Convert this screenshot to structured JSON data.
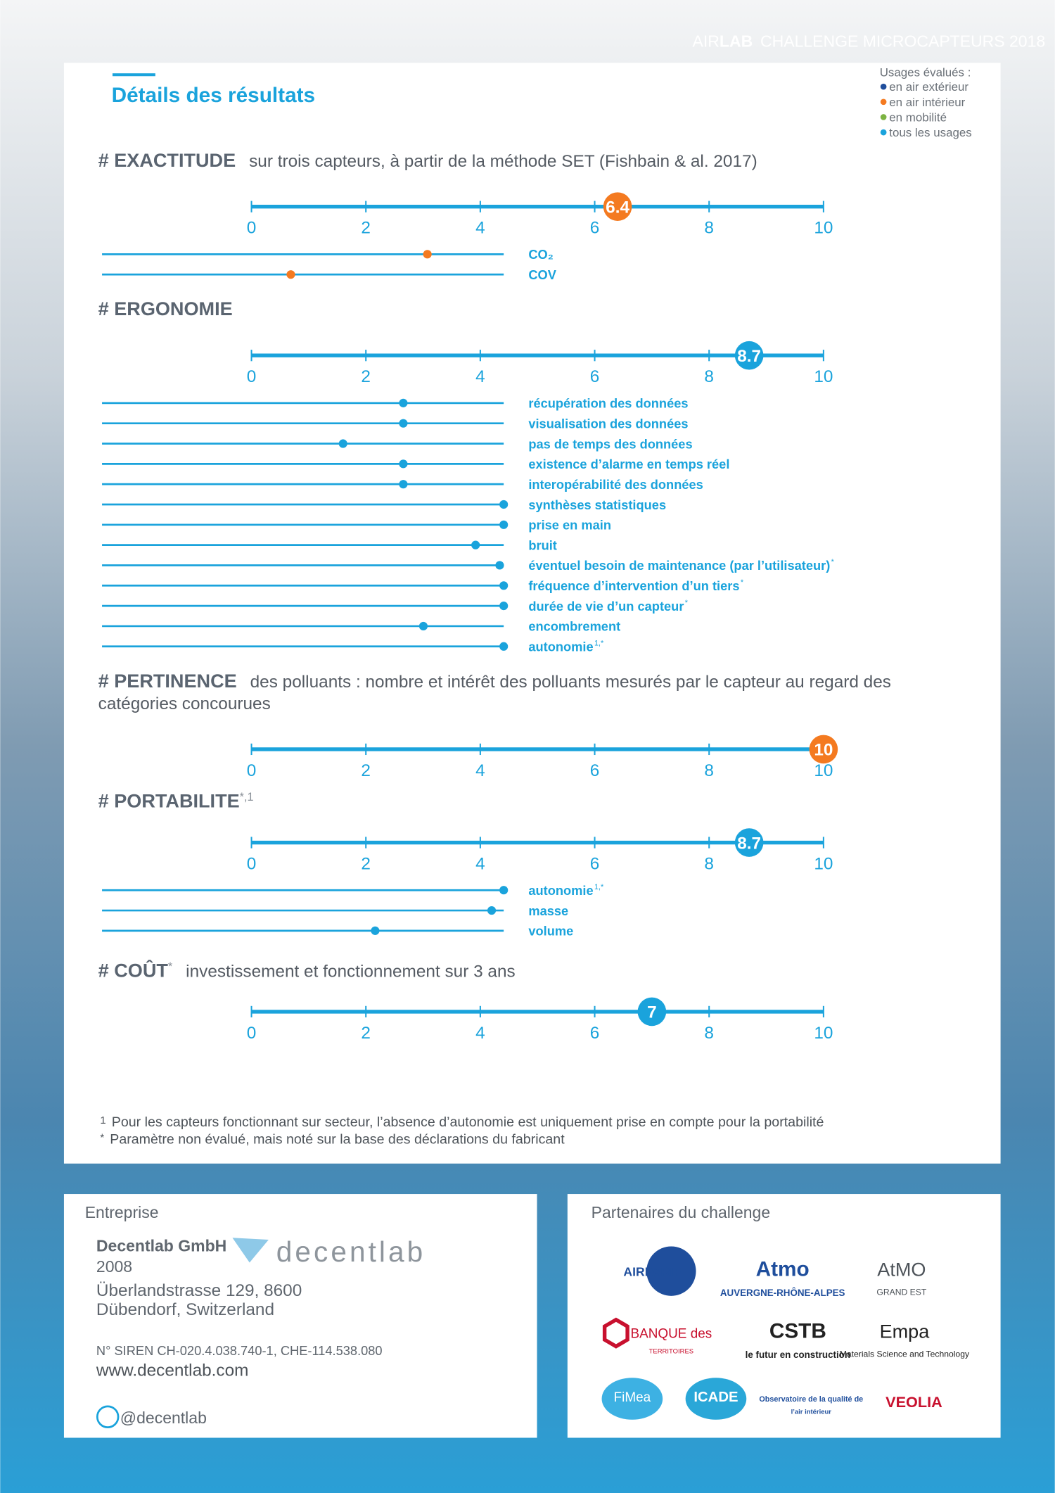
{
  "header": {
    "brand_air": "AIR",
    "brand_lab": "LAB",
    "title": "CHALLENGE MICROCAPTEURS 2018"
  },
  "page_title": "Détails des résultats",
  "legend": {
    "title": "Usages évalués :",
    "items": [
      {
        "label": "en air extérieur",
        "color": "#1f4e9c"
      },
      {
        "label": "en air intérieur",
        "color": "#f47a20"
      },
      {
        "label": "en mobilité",
        "color": "#7cb342"
      },
      {
        "label": "tous les usages",
        "color": "#1aa3dc"
      }
    ]
  },
  "sections": [
    {
      "heading": "# EXACTITUDE",
      "description": "sur trois capteurs, à partir de la méthode SET (Fishbain & al. 2017)",
      "score": 6.4,
      "color": "#f47a20",
      "xlim": [
        0,
        10
      ],
      "xticks": [
        0,
        2,
        4,
        6,
        8,
        10
      ],
      "criteria": [
        {
          "label": "CO₂",
          "value": 8.1
        },
        {
          "label": "COV",
          "value": 4.7
        }
      ]
    },
    {
      "heading": "# ERGONOMIE",
      "score": 8.7,
      "color": "#1aa3dc",
      "xlim": [
        0,
        10
      ],
      "xticks": [
        0,
        2,
        4,
        6,
        8,
        10
      ],
      "criteria": [
        {
          "label": "récupération des données",
          "value": 7.5
        },
        {
          "label": "visualisation des données",
          "value": 7.5
        },
        {
          "label": "pas de temps des données",
          "value": 6.0
        },
        {
          "label": "existence d’alarme en temps réel",
          "value": 7.5
        },
        {
          "label": "interopérabilité des données",
          "value": 7.5
        },
        {
          "label": "synthèses statistiques",
          "value": 10
        },
        {
          "label": "prise en main",
          "value": 10
        },
        {
          "label": "bruit",
          "value": 9.3
        },
        {
          "label": "éventuel besoin de maintenance (par l’utilisateur)",
          "note": "*",
          "value": 9.9
        },
        {
          "label": "fréquence d’intervention d’un tiers",
          "note": "*",
          "value": 10
        },
        {
          "label": "durée de vie d’un capteur",
          "note": "*",
          "value": 10
        },
        {
          "label": "encombrement",
          "value": 8.0
        },
        {
          "label": "autonomie",
          "note": "1,*",
          "value": 10
        }
      ]
    },
    {
      "heading": "# PERTINENCE",
      "description": "des polluants : nombre et intérêt des polluants mesurés par le capteur au regard des catégories concourues",
      "score": 10,
      "color": "#f47a20",
      "xlim": [
        0,
        10
      ],
      "xticks": [
        0,
        2,
        4,
        6,
        8,
        10
      ]
    },
    {
      "heading": "# PORTABILITE",
      "note": "*,1",
      "score": 8.7,
      "color": "#1aa3dc",
      "xlim": [
        0,
        10
      ],
      "xticks": [
        0,
        2,
        4,
        6,
        8,
        10
      ],
      "criteria": [
        {
          "label": "autonomie",
          "note": "1,*",
          "value": 10
        },
        {
          "label": "masse",
          "value": 9.7
        },
        {
          "label": "volume",
          "value": 6.8
        }
      ]
    },
    {
      "heading": "# COÛT",
      "note": "*",
      "description": "investissement et fonctionnement sur 3 ans",
      "score": 7,
      "color": "#1aa3dc",
      "xlim": [
        0,
        10
      ],
      "xticks": [
        0,
        2,
        4,
        6,
        8,
        10
      ]
    }
  ],
  "footnotes": [
    {
      "mark": "1",
      "text": "Pour les capteurs fonctionnant sur secteur, l’absence d’autonomie est uniquement prise en compte pour la portabilité"
    },
    {
      "mark": "*",
      "text": "Paramètre non évalué, mais noté sur la base des déclarations du fabricant"
    }
  ],
  "company": {
    "heading": "Entreprise",
    "name": "Decentlab GmbH",
    "logo": "decentlab",
    "year": "2008",
    "address": [
      "Überlandstrasse 129, 8600",
      "Dübendorf, Switzerland"
    ],
    "siren": "N° SIREN CH-020.4.038.740-1, CHE-114.538.080",
    "web": "www.decentlab.com",
    "twitter": "@decentlab"
  },
  "partners": {
    "heading": "Partenaires du challenge",
    "logos": [
      [
        "AIRPARIF"
      ],
      [
        "Atmo",
        "AUVERGNE-RHÔNE-ALPES"
      ],
      [
        "AtMO",
        "GRAND EST"
      ],
      [
        "BANQUE des",
        "TERRITOIRES"
      ],
      [
        "CSTB",
        "le futur en construction"
      ],
      [
        "Empa",
        "Materials Science and Technology"
      ],
      [
        "FiMea"
      ],
      [
        "ICADE"
      ],
      [
        "Observatoire de la qualité de",
        "l’air intérieur"
      ],
      [
        "VEOLIA"
      ]
    ]
  }
}
